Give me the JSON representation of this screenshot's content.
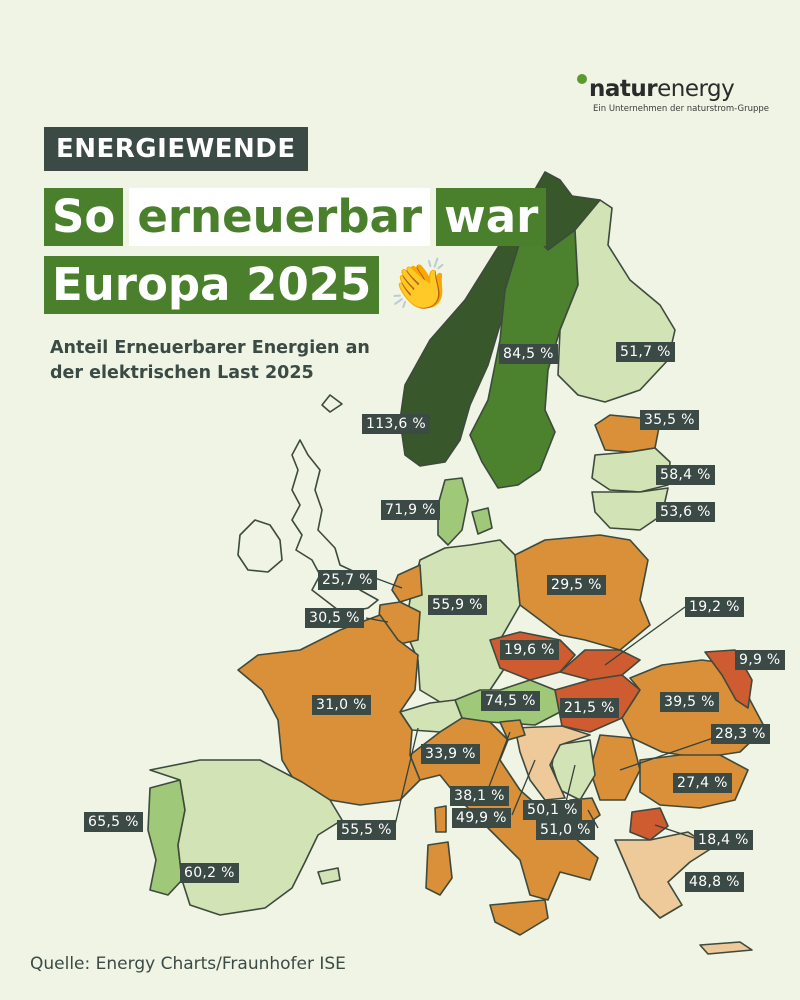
{
  "header": {
    "kicker": "ENERGIEWENDE",
    "title_line1_a": "So",
    "title_line1_b": "erneuerbar",
    "title_line1_c": "war",
    "title_line2": "Europa 2025",
    "emoji": "👏",
    "subtitle": "Anteil Erneuerbarer Energien an der elektrischen Last 2025"
  },
  "logo": {
    "name_bold": "natur",
    "name_rest": "energy",
    "tagline": "Ein Unternehmen der naturstrom-Gruppe"
  },
  "source": "Quelle: Energy Charts/Fraunhofer ISE",
  "colors": {
    "dark_green": "#38582b",
    "green": "#4c822d",
    "mid_green": "#9fc878",
    "light_green": "#d2e3b5",
    "orange": "#d99038",
    "red_orange": "#cf5b30",
    "peach": "#eec99a",
    "label_bg": "#3b4a45"
  },
  "regions": {
    "norway": "113,6 %",
    "sweden": "84,5 %",
    "finland": "51,7 %",
    "estonia": "35,5 %",
    "latvia": "58,4 %",
    "lithuania": "53,6 %",
    "denmark": "71,9 %",
    "germany": "55,9 %",
    "netherlands": "25,7 %",
    "belgium": "30,5 %",
    "poland": "29,5 %",
    "czechia": "19,6 %",
    "slovakia": "19,2 %",
    "moldova": "9,9 %",
    "austria": "74,5 %",
    "hungary": "21,5 %",
    "romania": "39,5 %",
    "serbia": "28,3 %",
    "bulgaria": "27,4 %",
    "north_macedonia": "18,4 %",
    "greece": "48,8 %",
    "france": "31,0 %",
    "switzerland": "55,5 %",
    "italy": "33,9 %",
    "slovenia": "38,1 %",
    "croatia": "49,9 %",
    "bosnia": "50,1 %",
    "montenegro": "51,0 %",
    "portugal": "65,5 %",
    "spain": "60,2 %"
  }
}
